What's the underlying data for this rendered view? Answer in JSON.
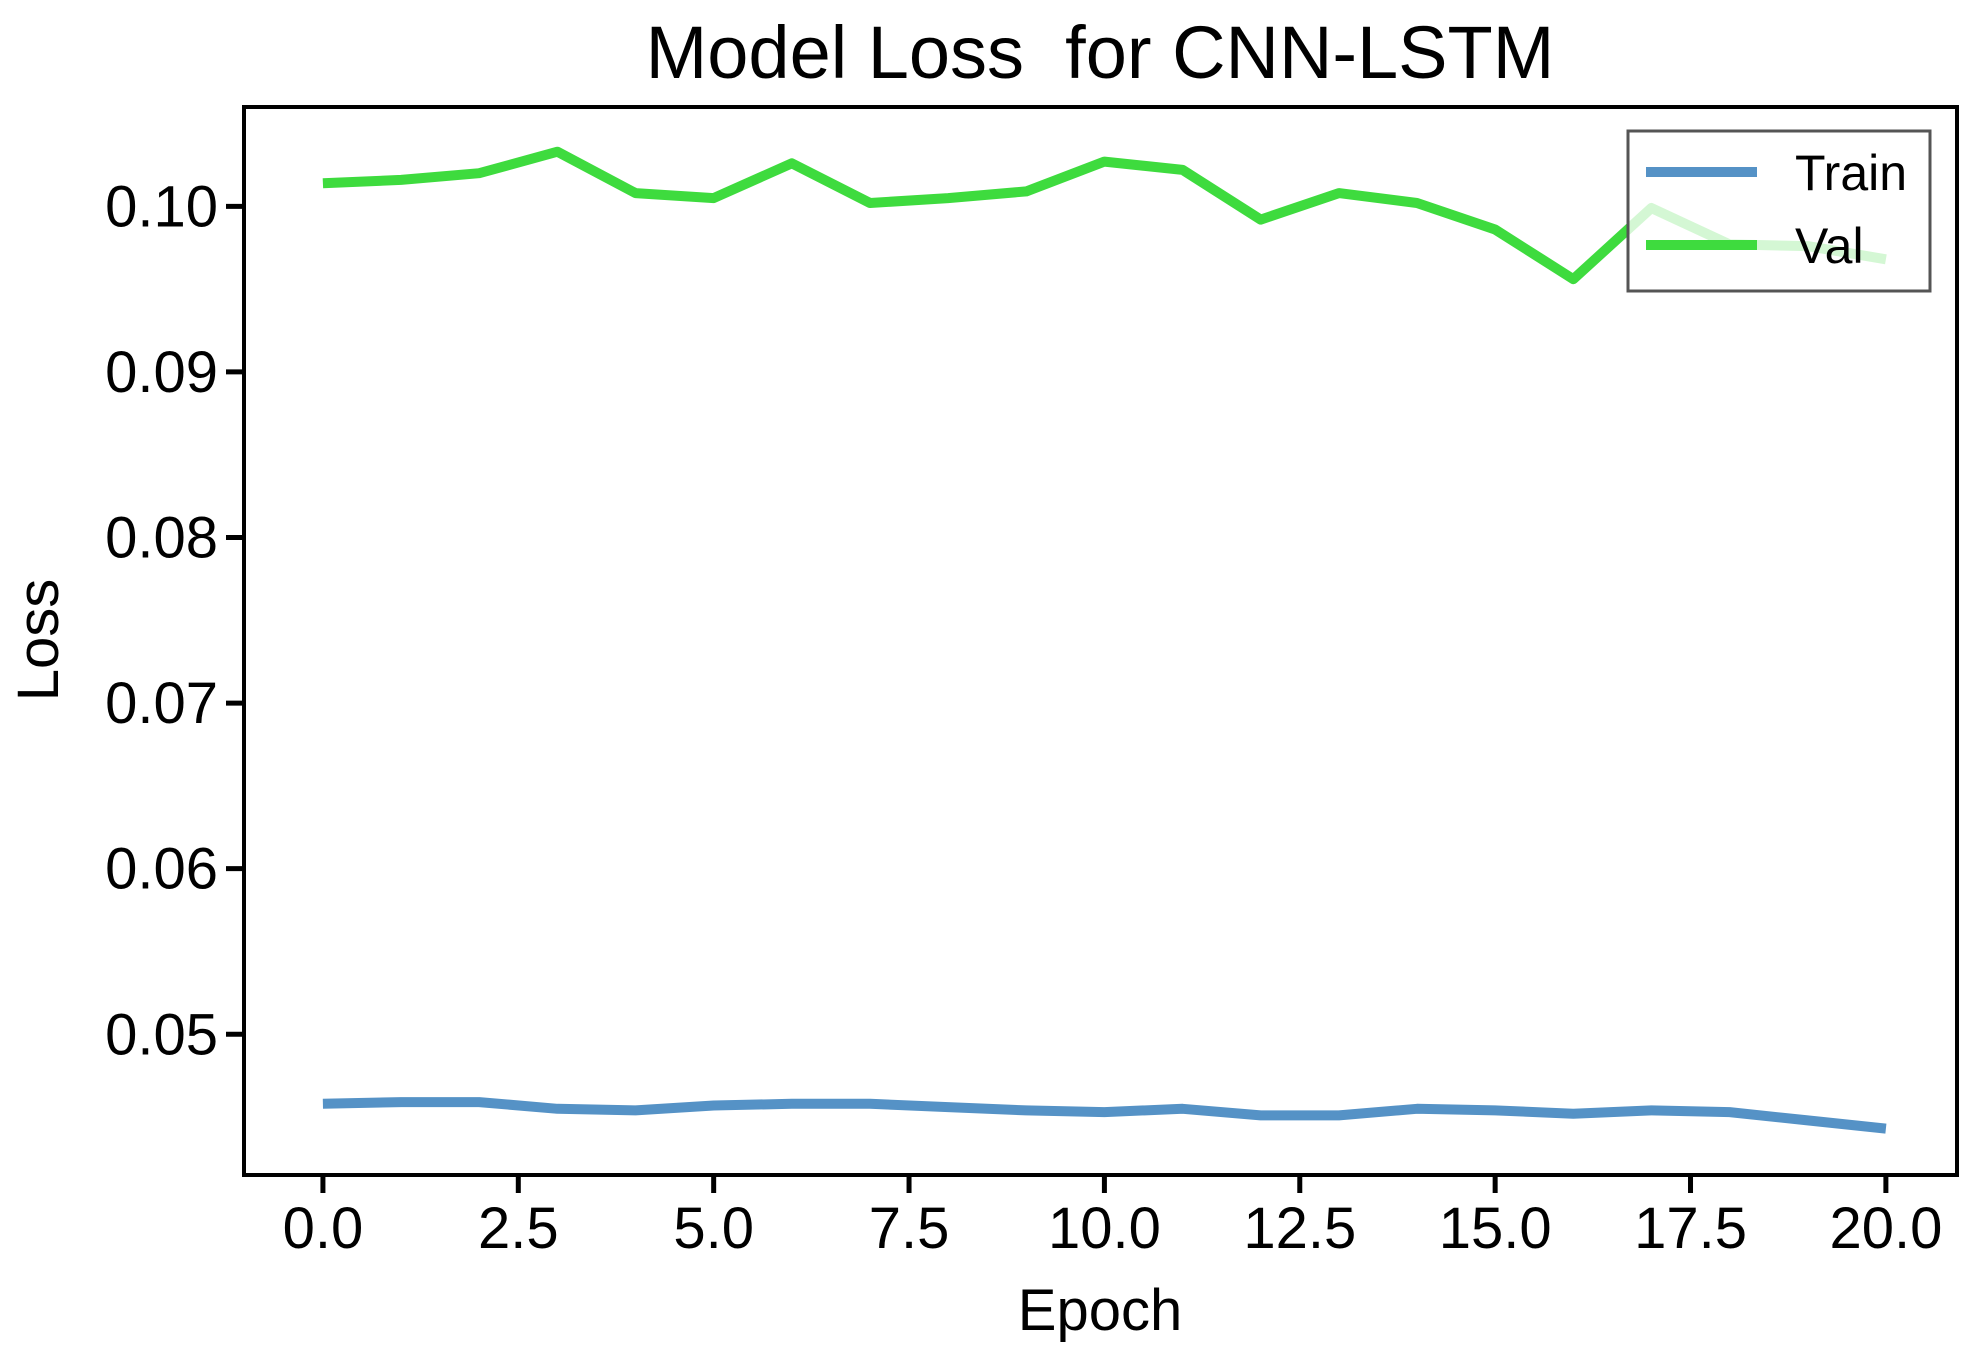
{
  "title": "Model Loss  for CNN-LSTM",
  "legend": {
    "train_label": "Train",
    "val_label": "Val",
    "position": "upper right"
  },
  "colors": {
    "train": "#5592c6",
    "val": "#3edb3e",
    "text": "#000000",
    "legend_border": "#555555",
    "spine": "#000000",
    "background": "#ffffff"
  },
  "chart_data": {
    "type": "line",
    "title": "Model Loss  for CNN-LSTM",
    "xlabel": "Epoch",
    "ylabel": "Loss",
    "x": [
      0,
      1,
      2,
      3,
      4,
      5,
      6,
      7,
      8,
      9,
      10,
      11,
      12,
      13,
      14,
      15,
      16,
      17,
      18,
      19,
      20
    ],
    "series": [
      {
        "name": "Train",
        "color": "#5592c6",
        "values": [
          0.0458,
          0.0459,
          0.0459,
          0.0455,
          0.0454,
          0.0457,
          0.0458,
          0.0458,
          0.0456,
          0.0454,
          0.0453,
          0.0455,
          0.0451,
          0.0451,
          0.0455,
          0.0454,
          0.0452,
          0.0454,
          0.0453,
          0.0448,
          0.0443
        ]
      },
      {
        "name": "Val",
        "color": "#3edb3e",
        "values": [
          0.1014,
          0.1016,
          0.102,
          0.1033,
          0.1008,
          0.1005,
          0.1026,
          0.1002,
          0.1005,
          0.1009,
          0.1027,
          0.1022,
          0.0992,
          0.1008,
          0.1002,
          0.0986,
          0.0956,
          0.0999,
          0.0977,
          0.0976,
          0.0968
        ]
      }
    ],
    "x_ticks": {
      "values": [
        0,
        2.5,
        5,
        7.5,
        10,
        12.5,
        15,
        17.5,
        20
      ],
      "labels": [
        "0.0",
        "2.5",
        "5.0",
        "7.5",
        "10.0",
        "12.5",
        "15.0",
        "17.5",
        "20.0"
      ]
    },
    "y_ticks": {
      "values": [
        0.05,
        0.06,
        0.07,
        0.08,
        0.09,
        0.1
      ],
      "labels": [
        "0.05",
        "0.06",
        "0.07",
        "0.08",
        "0.09",
        "0.10"
      ]
    },
    "xlim": [
      -1.01,
      20.91
    ],
    "ylim": [
      0.0415,
      0.106
    ],
    "grid": false,
    "legend_position": "upper right"
  }
}
